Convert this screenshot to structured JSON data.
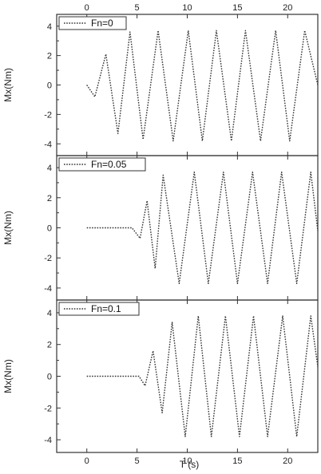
{
  "chart_data": {
    "type": "line",
    "x_label": "T (s)",
    "x_range": [
      -3,
      23
    ],
    "x_ticks": [
      0,
      5,
      10,
      15,
      20
    ],
    "x_ticks_top": [
      0,
      5,
      10,
      15,
      20
    ],
    "y_range": [
      -4.8,
      4.8
    ],
    "y_ticks": [
      -4,
      -2,
      0,
      2,
      4
    ],
    "line_color": "#333333",
    "line_style": "dotted",
    "legend_position": "top-left",
    "panels": [
      {
        "y_label": "Mx(Nm)",
        "legend": "Fn=0",
        "series": {
          "name": "Fn=0",
          "x": [
            0.0,
            0.8,
            1.9,
            3.1,
            4.3,
            5.6,
            7.1,
            8.6,
            10.1,
            11.5,
            12.9,
            14.4,
            15.8,
            17.3,
            18.8,
            20.2,
            21.7,
            23.0
          ],
          "y": [
            0.0,
            -0.8,
            2.1,
            -3.3,
            3.6,
            -3.7,
            3.7,
            -3.8,
            3.7,
            -3.8,
            3.7,
            -3.8,
            3.7,
            -3.8,
            3.7,
            -3.8,
            3.7,
            0.0
          ]
        }
      },
      {
        "y_label": "Mx(Nm)",
        "legend": "Fn=0.05",
        "series": {
          "name": "Fn=0.05",
          "x": [
            0.0,
            3.0,
            4.5,
            5.3,
            6.0,
            6.8,
            7.6,
            9.2,
            10.7,
            12.1,
            13.6,
            15.0,
            16.5,
            18.0,
            19.4,
            20.9,
            22.3,
            23.0
          ],
          "y": [
            0.0,
            0.0,
            0.0,
            -0.7,
            1.8,
            -2.7,
            3.5,
            -3.7,
            3.7,
            -3.7,
            3.7,
            -3.7,
            3.7,
            -3.7,
            3.7,
            -3.7,
            3.7,
            -0.2
          ]
        }
      },
      {
        "y_label": "Mx(Nm)",
        "legend": "Fn=0.1",
        "series": {
          "name": "Fn=0.1",
          "x": [
            0.0,
            3.0,
            5.2,
            5.8,
            6.6,
            7.5,
            8.5,
            9.8,
            11.1,
            12.4,
            13.8,
            15.2,
            16.6,
            18.0,
            19.5,
            20.9,
            22.3,
            23.0
          ],
          "y": [
            0.0,
            0.0,
            0.0,
            -0.6,
            1.6,
            -2.3,
            3.4,
            -3.8,
            3.8,
            -3.8,
            3.8,
            -3.8,
            3.8,
            -3.8,
            3.8,
            -3.8,
            3.8,
            0.6
          ]
        }
      }
    ]
  }
}
